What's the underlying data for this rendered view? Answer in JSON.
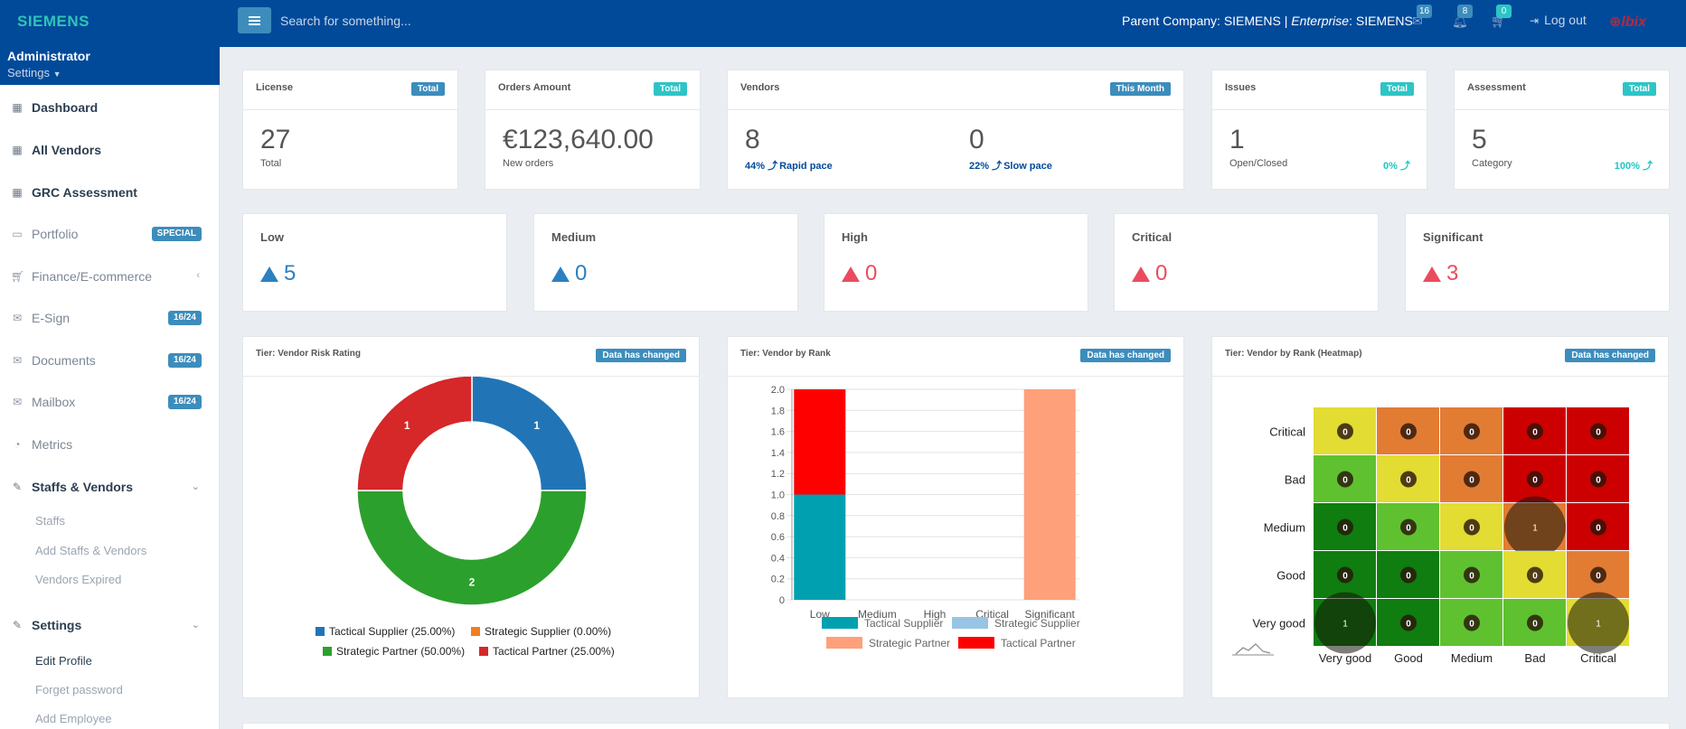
{
  "brand": "SIEMENS",
  "search": {
    "placeholder": "Search for something..."
  },
  "header": {
    "parent_company_label": "Parent Company: SIEMENS |",
    "enterprise_label": "Enterprise",
    "enterprise_value": ": SIEMENS",
    "mail_count": "16",
    "bell_count": "8",
    "cart_count": "0",
    "logout_label": "Log out",
    "corner_logo": "⊕lbix"
  },
  "user": {
    "name": "Administrator",
    "settings_label": "Settings"
  },
  "sidebar": {
    "items": [
      {
        "label": "Dashboard",
        "icon": "grid-icon"
      },
      {
        "label": "All Vendors",
        "icon": "grid-icon"
      },
      {
        "label": "GRC Assessment",
        "icon": "grid-icon"
      },
      {
        "label": "Portfolio",
        "icon": "monitor-icon",
        "badge": "SPECIAL"
      },
      {
        "label": "Finance/E-commerce",
        "icon": "cart-icon",
        "chevron": "‹"
      },
      {
        "label": "E-Sign",
        "icon": "envelope-icon",
        "badge": "16/24"
      },
      {
        "label": "Documents",
        "icon": "envelope-icon",
        "badge": "16/24"
      },
      {
        "label": "Mailbox",
        "icon": "envelope-icon",
        "badge": "16/24"
      },
      {
        "label": "Metrics",
        "icon": "pie-icon"
      },
      {
        "label": "Staffs & Vendors",
        "icon": "edit-icon",
        "chevron": "⌄"
      },
      {
        "label": "Settings",
        "icon": "edit-icon",
        "chevron": "⌄"
      }
    ],
    "staffs_sub": [
      "Staffs",
      "Add Staffs & Vendors",
      "Vendors Expired"
    ],
    "settings_sub": [
      "Edit Profile",
      "Forget password",
      "Add Employee"
    ]
  },
  "stats": {
    "license": {
      "title": "License",
      "label": "Total",
      "value": "27",
      "sub": "Total"
    },
    "orders": {
      "title": "Orders Amount",
      "label": "Total",
      "value": "€123,640.00",
      "sub": "New orders"
    },
    "vendors": {
      "title": "Vendors",
      "label": "This Month",
      "value_a": "8",
      "pct_a": "44% ⤴",
      "pct_a_label": "Rapid pace",
      "value_b": "0",
      "pct_b": "22% ⤴",
      "pct_b_label": "Slow pace"
    },
    "issues": {
      "title": "Issues",
      "label": "Total",
      "value": "1",
      "sub": "Open/Closed",
      "pct": "0% ⤴"
    },
    "assessment": {
      "title": "Assessment",
      "label": "Total",
      "value": "5",
      "sub": "Category",
      "pct": "100% ⤴"
    }
  },
  "risk_levels": [
    {
      "label": "Low",
      "value": "5",
      "color": "#2b80c2"
    },
    {
      "label": "Medium",
      "value": "0",
      "color": "#2b80c2"
    },
    {
      "label": "High",
      "value": "0",
      "color": "#ea4c5f"
    },
    {
      "label": "Critical",
      "value": "0",
      "color": "#ea4c5f"
    },
    {
      "label": "Significant",
      "value": "3",
      "color": "#ea4c5f"
    }
  ],
  "colors": {
    "label_blue": "#3c8dbc",
    "label_teal": "#2ec4c6",
    "teal_text": "#1cc7c1",
    "navy_text": "#014a9a"
  },
  "chart_data": [
    {
      "type": "pie",
      "title": "Tier: Vendor Risk Rating",
      "label": "Data has changed",
      "slices": [
        {
          "name": "Tactical Supplier (25.00%)",
          "value": 1,
          "color": "#2175b6"
        },
        {
          "name": "Strategic Supplier (0.00%)",
          "value": 0,
          "color": "#f17e21"
        },
        {
          "name": "Strategic Partner (50.00%)",
          "value": 2,
          "color": "#2ca02c"
        },
        {
          "name": "Tactical Partner (25.00%)",
          "value": 1,
          "color": "#d62729"
        }
      ]
    },
    {
      "type": "bar",
      "title": "Tier: Vendor by Rank",
      "label": "Data has changed",
      "categories": [
        "Low",
        "Medium",
        "High",
        "Critical",
        "Significant"
      ],
      "ylim": [
        0,
        2.0
      ],
      "yticks": [
        "0",
        "0.2",
        "0.4",
        "0.6",
        "0.8",
        "1.0",
        "1.2",
        "1.4",
        "1.6",
        "1.8",
        "2.0"
      ],
      "series": [
        {
          "name": "Tactical Supplier",
          "color": "#00a0b0",
          "values": [
            1,
            0,
            0,
            0,
            0
          ]
        },
        {
          "name": "Strategic Supplier",
          "color": "#99c4e4",
          "values": [
            0,
            0,
            0,
            0,
            0
          ]
        },
        {
          "name": "Strategic Partner",
          "color": "#fea07a",
          "values": [
            0,
            0,
            0,
            0,
            2
          ]
        },
        {
          "name": "Tactical Partner",
          "color": "#fe0000",
          "values": [
            1,
            0,
            0,
            0,
            0
          ]
        }
      ]
    },
    {
      "type": "heatmap",
      "title": "Tier: Vendor by Rank (Heatmap)",
      "label": "Data has changed",
      "rows": [
        "Critical",
        "Bad",
        "Medium",
        "Good",
        "Very good"
      ],
      "cols": [
        "Very good",
        "Good",
        "Medium",
        "Bad",
        "Critical"
      ],
      "values": [
        [
          0,
          0,
          0,
          0,
          0
        ],
        [
          0,
          0,
          0,
          0,
          0
        ],
        [
          0,
          0,
          0,
          1,
          0
        ],
        [
          0,
          0,
          0,
          0,
          0
        ],
        [
          1,
          0,
          0,
          0,
          1
        ]
      ],
      "cell_colors": [
        [
          "#e3dc33",
          "#e37c33",
          "#e37c33",
          "#cc0000",
          "#cc0000"
        ],
        [
          "#5fc12f",
          "#e3dc33",
          "#e37c33",
          "#cc0000",
          "#cc0000"
        ],
        [
          "#0f7d0f",
          "#5fc12f",
          "#e3dc33",
          "#e37c33",
          "#cc0000"
        ],
        [
          "#0f7d0f",
          "#0f7d0f",
          "#5fc12f",
          "#e3dc33",
          "#e37c33"
        ],
        [
          "#0f7d0f",
          "#0f7d0f",
          "#5fc12f",
          "#5fc12f",
          "#e3dc33"
        ]
      ]
    }
  ]
}
